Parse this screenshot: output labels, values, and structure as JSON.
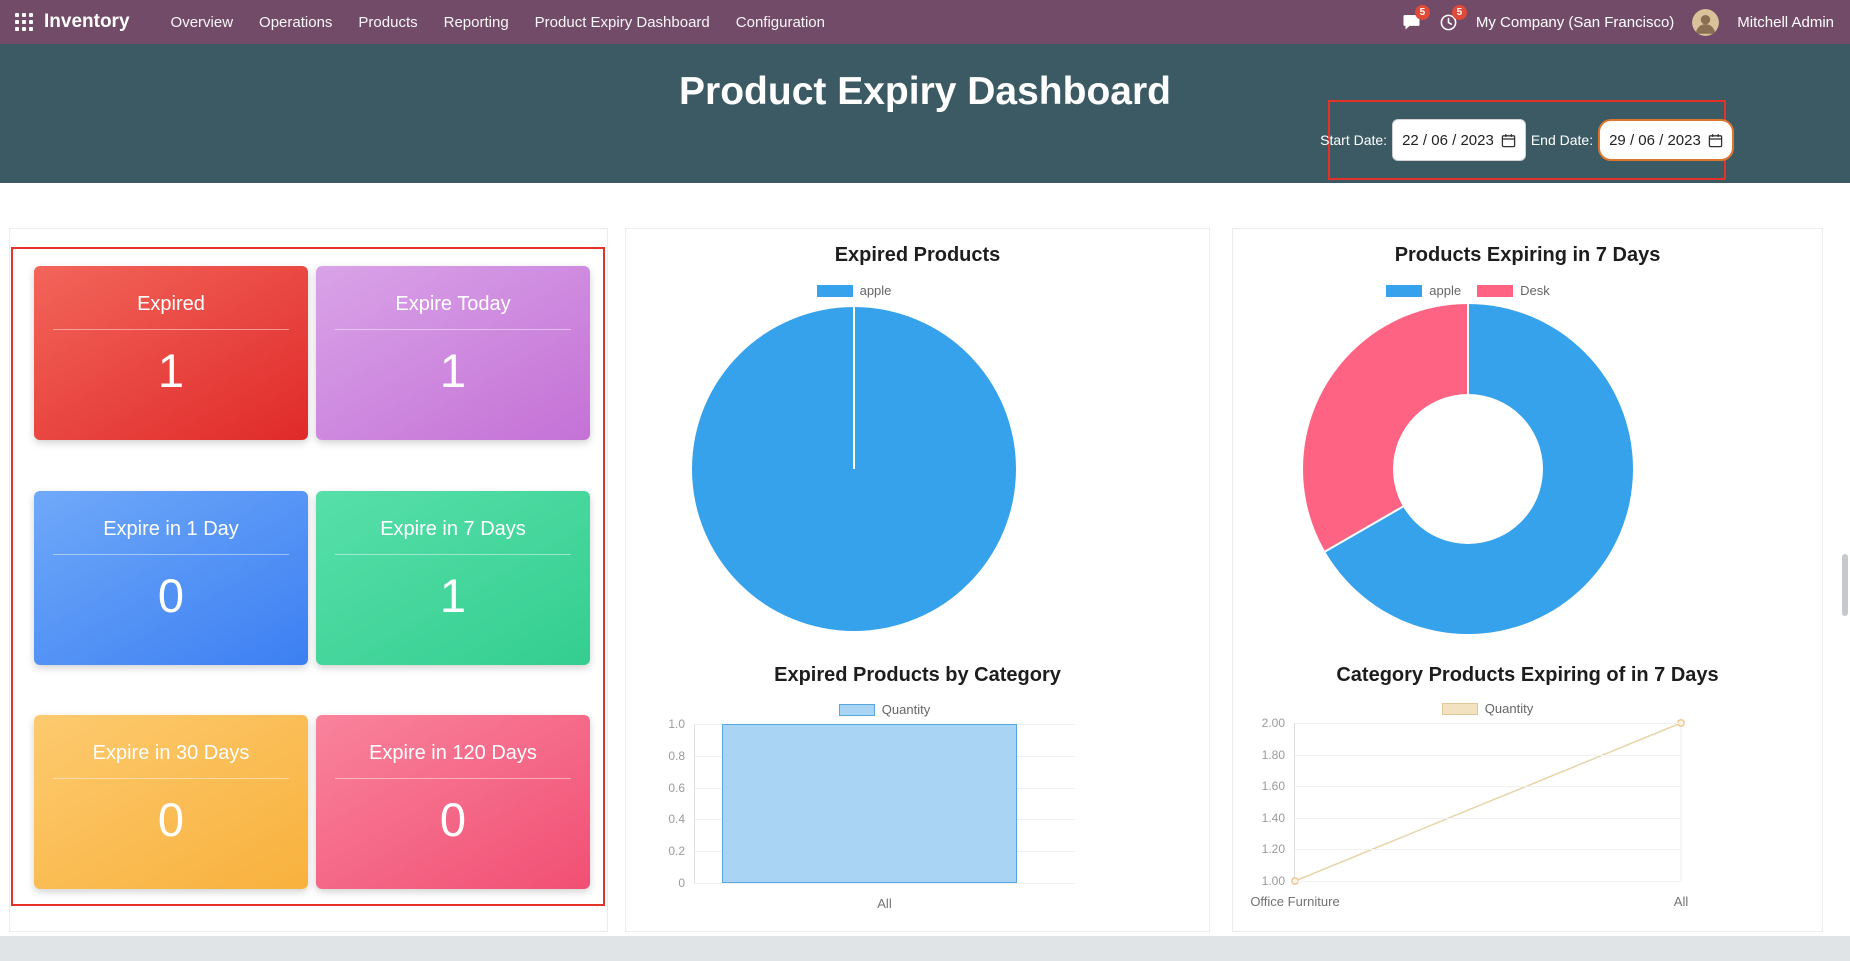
{
  "navbar": {
    "app_name": "Inventory",
    "menu_items": [
      "Overview",
      "Operations",
      "Products",
      "Reporting",
      "Product Expiry Dashboard",
      "Configuration"
    ],
    "messages_badge": "5",
    "activities_badge": "5",
    "company": "My Company (San Francisco)",
    "user": "Mitchell Admin",
    "bg_color": "#714B67"
  },
  "header": {
    "title": "Product Expiry Dashboard",
    "bg_color": "#3b5a64",
    "start_date_label": "Start Date:",
    "start_date_value": "22 / 06 / 2023",
    "end_date_label": "End Date:",
    "end_date_value": "29 / 06 / 2023",
    "annotation_color": "#e53228"
  },
  "stat_cards": [
    {
      "label": "Expired",
      "value": "1",
      "gradient_from": "#f2655a",
      "gradient_to": "#e02a2a"
    },
    {
      "label": "Expire Today",
      "value": "1",
      "gradient_from": "#d9a3e8",
      "gradient_to": "#c471d6"
    },
    {
      "label": "Expire in 1 Day",
      "value": "0",
      "gradient_from": "#6fa9f9",
      "gradient_to": "#3c7ff2"
    },
    {
      "label": "Expire in 7 Days",
      "value": "1",
      "gradient_from": "#57dfa9",
      "gradient_to": "#34ce90"
    },
    {
      "label": "Expire in 30 Days",
      "value": "0",
      "gradient_from": "#fdca6f",
      "gradient_to": "#f8b13c"
    },
    {
      "label": "Expire in 120 Days",
      "value": "0",
      "gradient_from": "#f9839c",
      "gradient_to": "#f14f74"
    }
  ],
  "chart_data": [
    {
      "type": "pie",
      "title": "Expired Products",
      "labels": [
        "apple"
      ],
      "values": [
        1
      ],
      "colors": [
        "#36a2eb"
      ],
      "legend_position": "top",
      "legend": [
        {
          "label": "apple",
          "color": "#36a2eb"
        }
      ]
    },
    {
      "type": "bar",
      "title": "Expired Products by Category",
      "categories": [
        "All"
      ],
      "values": [
        1.0
      ],
      "ylim": [
        0,
        1.0
      ],
      "yticks": [
        "1.0",
        "0.8",
        "0.6",
        "0.4",
        "0.2",
        "0"
      ],
      "series_color": "#a9d4f4",
      "series_border": "#57a7e0",
      "legend_position": "top",
      "legend": [
        {
          "label": "Quantity",
          "color": "#a9d4f4",
          "border": "#57a7e0"
        }
      ]
    },
    {
      "type": "doughnut",
      "title": "Products Expiring in 7 Days",
      "labels": [
        "apple",
        "Desk"
      ],
      "values": [
        2,
        1
      ],
      "colors": [
        "#36a2eb",
        "#ff6384"
      ],
      "legend_position": "top",
      "legend": [
        {
          "label": "apple",
          "color": "#36a2eb"
        },
        {
          "label": "Desk",
          "color": "#ff6384"
        }
      ]
    },
    {
      "type": "line",
      "title": "Category Products Expiring of in 7 Days",
      "categories": [
        "Office Furniture",
        "All"
      ],
      "values": [
        1.0,
        2.0
      ],
      "ylim": [
        1.0,
        2.0
      ],
      "yticks": [
        "2.00",
        "1.80",
        "1.60",
        "1.40",
        "1.20",
        "1.00"
      ],
      "line_color": "#e7d4a9",
      "point_color": "#eec389",
      "point_fill": "#fdf6ea",
      "legend_position": "top",
      "legend": [
        {
          "label": "Quantity",
          "color": "#f3e2c0",
          "border": "#dfc79a"
        }
      ]
    }
  ]
}
